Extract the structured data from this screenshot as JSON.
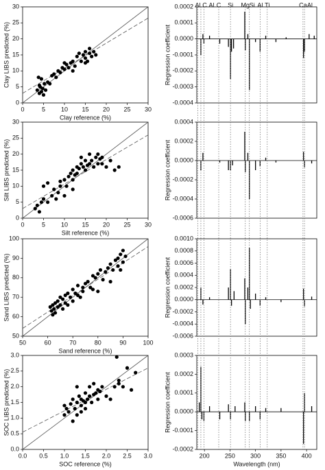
{
  "chart_data": [
    {
      "type": "scatter",
      "x_label": "Clay reference (%)",
      "y_label": "Clay LIBS predicted (%)",
      "xlim": [
        0,
        30
      ],
      "ylim": [
        0,
        30
      ],
      "xticks": [
        0,
        5,
        10,
        15,
        20,
        25,
        30
      ],
      "yticks": [
        0,
        5,
        10,
        15,
        20,
        25,
        30
      ],
      "identity_line": true,
      "fit_line": {
        "x": [
          0,
          30
        ],
        "y": [
          3,
          26.5
        ]
      },
      "color": "#000000",
      "x": [
        3.5,
        4,
        4.2,
        4.5,
        4.8,
        5,
        5.2,
        3.8,
        4.5,
        6,
        6.5,
        7,
        7.5,
        8,
        8.5,
        9,
        9.5,
        10,
        10.5,
        11,
        11.5,
        12,
        12,
        12.5,
        13,
        14,
        14.5,
        15,
        15,
        15.5,
        16,
        16.5,
        17,
        17.5,
        15,
        16,
        13.5,
        10,
        5.5,
        4
      ],
      "values": [
        4,
        3,
        5,
        3.5,
        4.5,
        2.5,
        6,
        8,
        7.5,
        6.5,
        6,
        8.5,
        9,
        8,
        10,
        9.5,
        11,
        10.5,
        12,
        11,
        12.5,
        13,
        10,
        11.5,
        14.5,
        13,
        15,
        16,
        14,
        13,
        15.5,
        14.5,
        16,
        15,
        12.5,
        17,
        15.5,
        12.5,
        4,
        5.5
      ]
    },
    {
      "type": "scatter",
      "x_label": "Silt reference (%)",
      "y_label": "Silt LIBS predicted (%)",
      "xlim": [
        0,
        30
      ],
      "ylim": [
        0,
        30
      ],
      "xticks": [
        0,
        5,
        10,
        15,
        20,
        25,
        30
      ],
      "yticks": [
        0,
        5,
        10,
        15,
        20,
        25,
        30
      ],
      "identity_line": true,
      "fit_line": {
        "x": [
          0,
          30
        ],
        "y": [
          3,
          26
        ]
      },
      "color": "#000000",
      "x": [
        3,
        3.5,
        4,
        4.5,
        5,
        5,
        6,
        6,
        7,
        7.5,
        8,
        8.5,
        9,
        9,
        10,
        10.5,
        11,
        11.5,
        12,
        12,
        12.5,
        13,
        13,
        13.5,
        14,
        14,
        14.5,
        15,
        15,
        15.5,
        16,
        16,
        16.5,
        17,
        17.5,
        18,
        18,
        18.5,
        19,
        19,
        20,
        21,
        22,
        23,
        12,
        10
      ],
      "values": [
        3,
        4,
        2,
        5,
        6,
        10,
        11,
        5,
        7,
        9,
        6,
        8,
        10,
        11.5,
        12,
        10,
        13,
        14,
        15,
        12,
        13.5,
        16,
        14,
        15.5,
        17,
        19,
        16,
        15,
        18,
        16.5,
        17,
        20,
        18,
        16,
        19,
        20,
        17,
        18.5,
        19,
        17,
        16,
        18,
        15,
        16,
        9,
        7
      ]
    },
    {
      "type": "scatter",
      "x_label": "Sand reference (%)",
      "y_label": "Sand LIBS predicted (%)",
      "xlim": [
        50,
        100
      ],
      "ylim": [
        50,
        100
      ],
      "xticks": [
        50,
        60,
        70,
        80,
        90,
        100
      ],
      "yticks": [
        50,
        60,
        70,
        80,
        90,
        100
      ],
      "identity_line": true,
      "fit_line": {
        "x": [
          50,
          100
        ],
        "y": [
          54,
          96
        ]
      },
      "color": "#000000",
      "x": [
        61,
        61.5,
        62,
        62,
        62.5,
        63,
        63,
        64,
        64,
        65,
        65,
        66,
        66,
        67,
        67,
        68,
        68,
        69,
        70,
        70,
        71,
        72,
        72,
        73,
        74,
        74,
        75,
        76,
        77,
        78,
        78,
        79,
        80,
        81,
        82,
        83,
        84,
        85,
        86,
        87,
        88,
        88,
        89,
        90,
        90,
        91,
        89,
        85,
        80
      ],
      "values": [
        65,
        63,
        66,
        61,
        64,
        67,
        62,
        68,
        65,
        66,
        70,
        69,
        64,
        71,
        67,
        72,
        66,
        70,
        74,
        68,
        72,
        76,
        71,
        70,
        75,
        73,
        77,
        78,
        75,
        81,
        74,
        80,
        82,
        84,
        79,
        83,
        85,
        87,
        84,
        89,
        90,
        86,
        92,
        94,
        88,
        91,
        84,
        78,
        73
      ]
    },
    {
      "type": "scatter",
      "x_label": "SOC reference (%)",
      "y_label": "SOC LIBS predicted (%)",
      "xlim": [
        0,
        3
      ],
      "ylim": [
        0,
        3
      ],
      "xticks": [
        {
          "value": 0,
          "label": "0.0"
        },
        0.5,
        {
          "value": 1,
          "label": "1.0"
        },
        1.5,
        {
          "value": 2,
          "label": "2.0"
        },
        2.5,
        {
          "value": 3,
          "label": "3.0"
        }
      ],
      "yticks": [
        {
          "value": 0,
          "label": "0.0"
        },
        0.5,
        {
          "value": 1,
          "label": "1.0"
        },
        1.5,
        {
          "value": 2,
          "label": "2.0"
        },
        2.5,
        {
          "value": 3,
          "label": "3.0"
        }
      ],
      "identity_line": true,
      "fit_line": {
        "x": [
          0,
          3
        ],
        "y": [
          0.55,
          2.6
        ]
      },
      "color": "#000000",
      "x": [
        1.0,
        1.0,
        1.05,
        1.1,
        1.15,
        1.2,
        1.2,
        1.25,
        1.3,
        1.3,
        1.35,
        1.4,
        1.4,
        1.45,
        1.5,
        1.5,
        1.5,
        1.55,
        1.6,
        1.6,
        1.65,
        1.7,
        1.7,
        1.75,
        1.8,
        1.8,
        1.85,
        1.9,
        2.0,
        2.1,
        2.2,
        2.3,
        2.25,
        2.3,
        2.4,
        2.5,
        2.6,
        2.7,
        1.3,
        1.4
      ],
      "values": [
        1.4,
        1.1,
        1.3,
        1.2,
        1.45,
        0.9,
        1.6,
        1.3,
        1.5,
        1.1,
        1.7,
        1.4,
        1.2,
        1.55,
        1.8,
        1.5,
        1.3,
        1.6,
        1.7,
        2.0,
        1.5,
        1.75,
        2.1,
        1.8,
        1.9,
        1.6,
        1.85,
        2.0,
        1.7,
        1.6,
        2.0,
        2.1,
        2.95,
        2.2,
        2.0,
        2.6,
        1.9,
        2.45,
        2.0,
        1.6
      ]
    },
    {
      "type": "stem",
      "y_label": "Regression coefficient",
      "xlim": [
        185,
        420
      ],
      "ylim": [
        -0.0004,
        0.0002
      ],
      "yticks": [
        {
          "value": -0.0004,
          "label": "-0.0004"
        },
        {
          "value": -0.0003,
          "label": "-0.0003"
        },
        {
          "value": -0.0002,
          "label": "-0.0002"
        },
        {
          "value": -0.0001,
          "label": "-0.0001"
        },
        {
          "value": 0,
          "label": "0.0000"
        },
        {
          "value": 0.0001,
          "label": "0.0001"
        },
        {
          "value": 0.0002,
          "label": "0.0002"
        }
      ],
      "annotations": [
        {
          "label": "Al",
          "x": 187
        },
        {
          "label": "C",
          "x": 193
        },
        {
          "label": "Al",
          "x": 199
        },
        {
          "label": "C",
          "x": 228
        },
        {
          "label": "Si",
          "x": 251
        },
        {
          "label": "Mg",
          "x": 280
        },
        {
          "label": "Si",
          "x": 288
        },
        {
          "label": "Al",
          "x": 309
        },
        {
          "label": "Ti",
          "x": 323
        },
        {
          "label": "Ca",
          "x": 393
        },
        {
          "label": "Al",
          "x": 396
        }
      ],
      "color": "#000000",
      "x": [
        193,
        197,
        199,
        210,
        230,
        247,
        251,
        253,
        257,
        279,
        280,
        285,
        288,
        300,
        309,
        320,
        340,
        360,
        394,
        396,
        405,
        415
      ],
      "values": [
        -0.0001,
        3e-05,
        -3e-05,
        2e-05,
        -3e-05,
        -5e-05,
        -0.00025,
        -8e-05,
        -6e-05,
        0.00017,
        -7e-05,
        3e-05,
        -0.00032,
        -2e-05,
        -8e-05,
        2e-05,
        -2e-05,
        1e-05,
        -0.00012,
        -8e-05,
        3e-05,
        2e-05
      ]
    },
    {
      "type": "stem",
      "y_label": "Regression coefficient",
      "xlim": [
        185,
        420
      ],
      "ylim": [
        -0.0006,
        0.0004
      ],
      "yticks": [
        {
          "value": -0.0006,
          "label": "-0.0006"
        },
        {
          "value": -0.0004,
          "label": "-0.0004"
        },
        {
          "value": -0.0002,
          "label": "-0.0002"
        },
        {
          "value": 0,
          "label": "0.0000"
        },
        {
          "value": 0.0002,
          "label": "0.0002"
        },
        {
          "value": 0.0004,
          "label": "0.0004"
        }
      ],
      "color": "#000000",
      "x": [
        193,
        197,
        230,
        247,
        251,
        255,
        279,
        280,
        285,
        288,
        300,
        309,
        320,
        340,
        394,
        396,
        410
      ],
      "values": [
        -0.0001,
        8e-05,
        -2e-05,
        -0.0001,
        -0.0001,
        -5e-05,
        0.0003,
        -0.00012,
        8e-05,
        -0.0004,
        -0.0001,
        -6e-05,
        3e-05,
        -2e-05,
        9e-05,
        -7e-05,
        -3e-05
      ]
    },
    {
      "type": "stem",
      "y_label": "Regression coefficient",
      "xlim": [
        185,
        420
      ],
      "ylim": [
        -0.0006,
        0.001
      ],
      "yticks": [
        {
          "value": -0.0006,
          "label": "-0.0006"
        },
        {
          "value": -0.0004,
          "label": "-0.0004"
        },
        {
          "value": -0.0002,
          "label": "-0.0002"
        },
        {
          "value": 0,
          "label": "0.0000"
        },
        {
          "value": 0.0002,
          "label": "0.0002"
        },
        {
          "value": 0.0004,
          "label": "0.0004"
        },
        {
          "value": 0.0006,
          "label": "0.0006"
        },
        {
          "value": 0.0008,
          "label": "0.0008"
        },
        {
          "value": 0.001,
          "label": "0.0010"
        }
      ],
      "color": "#000000",
      "x": [
        193,
        197,
        210,
        247,
        251,
        253,
        258,
        279,
        280,
        285,
        288,
        290,
        300,
        309,
        320,
        350,
        394,
        396,
        410
      ],
      "values": [
        0.0002,
        -8e-05,
        4e-05,
        0.0002,
        0.0005,
        -0.0001,
        0.00014,
        0.00035,
        -0.0004,
        0.0002,
        0.00085,
        -0.00015,
        0.0001,
        -0.0001,
        4e-05,
        -4e-05,
        0.00018,
        -0.00011,
        5e-05
      ]
    },
    {
      "type": "stem",
      "x_label": "Wavelength (nm)",
      "y_label": "Regression coefficient",
      "xlim": [
        185,
        420
      ],
      "ylim": [
        -0.0002,
        0.0003
      ],
      "xticks": [
        200,
        250,
        300,
        350,
        400
      ],
      "yticks": [
        {
          "value": -0.0002,
          "label": "-0.0002"
        },
        {
          "value": -0.0001,
          "label": "-0.0001"
        },
        {
          "value": 0,
          "label": "0.0000"
        },
        {
          "value": 0.0001,
          "label": "0.0001"
        },
        {
          "value": 0.0002,
          "label": "0.0002"
        },
        {
          "value": 0.0003,
          "label": "0.0003"
        }
      ],
      "color": "#000000",
      "x": [
        190,
        193,
        195,
        199,
        210,
        230,
        247,
        251,
        260,
        279,
        280,
        288,
        300,
        309,
        320,
        350,
        394,
        396,
        410
      ],
      "values": [
        5e-05,
        0.00024,
        -4e-05,
        -5e-05,
        3e-05,
        -4e-05,
        4e-05,
        -4e-05,
        3e-05,
        5e-05,
        -5e-05,
        -5e-05,
        3e-05,
        -4e-05,
        2e-05,
        2e-05,
        -0.00017,
        0.0001,
        3e-05
      ]
    }
  ]
}
